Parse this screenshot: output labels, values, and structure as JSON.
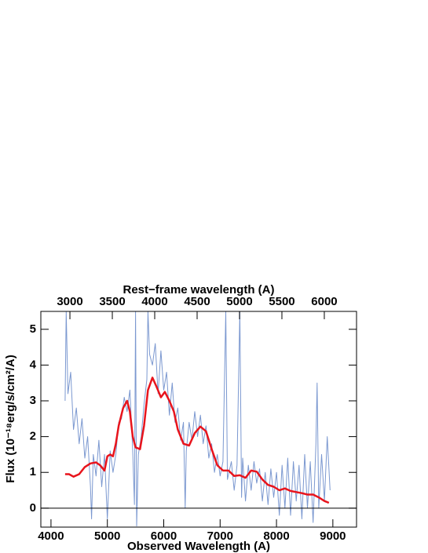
{
  "chart_data": {
    "type": "line",
    "xlabel": "Observed Wavelength (A)",
    "x2label": "Rest−frame wavelength (A)",
    "ylabel": "Flux (10⁻¹⁸erg/s/cm²/A)",
    "xlim": [
      3820,
      9420
    ],
    "xticks": [
      4000,
      5000,
      6000,
      7000,
      8000,
      9000
    ],
    "x2lim": [
      2657,
      6380
    ],
    "x2ticks": [
      3000,
      3500,
      4000,
      4500,
      5000,
      5500,
      6000
    ],
    "ylim": [
      -0.53,
      5.5
    ],
    "yticks": [
      0,
      1,
      2,
      3,
      4,
      5
    ],
    "reference_line": 0,
    "series": [
      {
        "color": "#7b98d0",
        "x": [
          4250,
          4270,
          4300,
          4350,
          4400,
          4450,
          4500,
          4550,
          4600,
          4650,
          4700,
          4720,
          4750,
          4800,
          4850,
          4900,
          4950,
          5000,
          5050,
          5100,
          5150,
          5200,
          5250,
          5300,
          5350,
          5400,
          5450,
          5480,
          5500,
          5520,
          5550,
          5600,
          5650,
          5700,
          5720,
          5750,
          5800,
          5850,
          5900,
          5950,
          6000,
          6050,
          6100,
          6150,
          6200,
          6250,
          6300,
          6350,
          6380,
          6400,
          6450,
          6500,
          6550,
          6600,
          6650,
          6700,
          6750,
          6800,
          6850,
          6900,
          6950,
          7000,
          7050,
          7100,
          7130,
          7200,
          7250,
          7300,
          7350,
          7380,
          7400,
          7450,
          7500,
          7550,
          7600,
          7650,
          7700,
          7750,
          7800,
          7850,
          7900,
          7950,
          8000,
          8050,
          8100,
          8150,
          8200,
          8250,
          8300,
          8350,
          8400,
          8450,
          8500,
          8550,
          8600,
          8650,
          8700,
          8720,
          8750,
          8800,
          8850,
          8900,
          8950
        ],
        "values": [
          3.0,
          5.5,
          3.2,
          3.8,
          2.2,
          2.8,
          1.8,
          2.5,
          1.4,
          2.0,
          0.6,
          -0.3,
          1.5,
          0.9,
          1.9,
          0.6,
          1.5,
          -0.3,
          1.6,
          1.0,
          1.5,
          2.4,
          2.5,
          3.1,
          2.7,
          3.3,
          1.6,
          0.1,
          5.5,
          -0.5,
          1.5,
          2.0,
          2.9,
          3.6,
          5.5,
          4.3,
          4.0,
          4.6,
          3.2,
          4.4,
          3.3,
          3.8,
          2.6,
          3.5,
          2.4,
          2.8,
          1.9,
          2.4,
          0.0,
          1.6,
          2.4,
          1.9,
          2.7,
          2.0,
          2.6,
          1.8,
          2.3,
          1.4,
          1.8,
          1.0,
          1.5,
          0.9,
          1.3,
          5.5,
          0.8,
          1.3,
          0.5,
          1.2,
          5.5,
          0.3,
          1.4,
          0.2,
          1.2,
          0.5,
          1.3,
          0.7,
          1.1,
          0.2,
          1.0,
          0.1,
          1.1,
          0.3,
          1.0,
          -0.2,
          1.2,
          0.0,
          1.4,
          -0.2,
          1.3,
          0.2,
          1.2,
          -0.3,
          1.5,
          0.0,
          1.3,
          -0.4,
          1.8,
          3.5,
          0.0,
          1.5,
          0.2,
          2.0,
          0.5
        ]
      },
      {
        "color": "#e8141c",
        "x": [
          4250,
          4320,
          4400,
          4500,
          4600,
          4700,
          4800,
          4870,
          4950,
          5000,
          5050,
          5100,
          5150,
          5200,
          5280,
          5350,
          5400,
          5450,
          5500,
          5580,
          5650,
          5720,
          5800,
          5870,
          5950,
          6020,
          6100,
          6180,
          6250,
          6350,
          6450,
          6550,
          6650,
          6750,
          6850,
          6950,
          7050,
          7150,
          7250,
          7350,
          7450,
          7550,
          7650,
          7750,
          7850,
          7950,
          8050,
          8150,
          8250,
          8350,
          8450,
          8550,
          8650,
          8750,
          8850,
          8930
        ],
        "values": [
          0.95,
          0.95,
          0.88,
          0.95,
          1.15,
          1.25,
          1.28,
          1.2,
          1.05,
          1.45,
          1.5,
          1.45,
          1.8,
          2.3,
          2.8,
          3.0,
          2.7,
          2.0,
          1.7,
          1.65,
          2.3,
          3.3,
          3.65,
          3.4,
          3.1,
          3.25,
          3.0,
          2.7,
          2.2,
          1.8,
          1.75,
          2.1,
          2.28,
          2.15,
          1.65,
          1.2,
          1.05,
          1.05,
          0.9,
          0.92,
          0.85,
          1.05,
          1.02,
          0.8,
          0.65,
          0.6,
          0.5,
          0.55,
          0.48,
          0.45,
          0.42,
          0.38,
          0.38,
          0.3,
          0.2,
          0.15
        ]
      }
    ]
  }
}
